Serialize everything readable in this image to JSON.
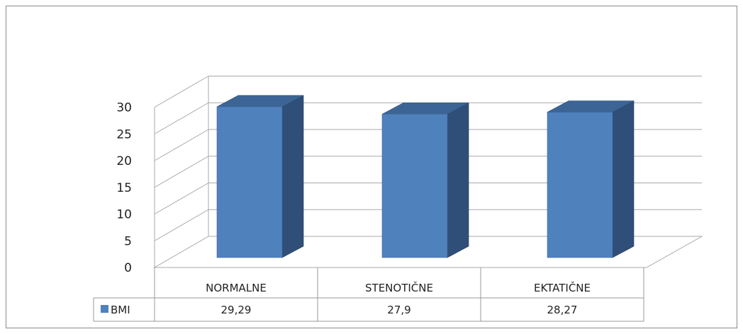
{
  "chart_data": {
    "type": "bar",
    "categories": [
      "NORMALNE",
      "STENOTIČNE",
      "EKTATIČNE"
    ],
    "series": [
      {
        "name": "BMI",
        "values": [
          29.29,
          27.9,
          28.27
        ],
        "color": "#4f81bd"
      }
    ],
    "value_labels": [
      "29,29",
      "27,9",
      "28,27"
    ],
    "ylim": [
      0,
      30
    ],
    "yticks": [
      "0",
      "5",
      "10",
      "15",
      "20",
      "25",
      "30"
    ],
    "grid": true,
    "style": "3d-column",
    "data_table": true,
    "legend": "in-data-table"
  }
}
